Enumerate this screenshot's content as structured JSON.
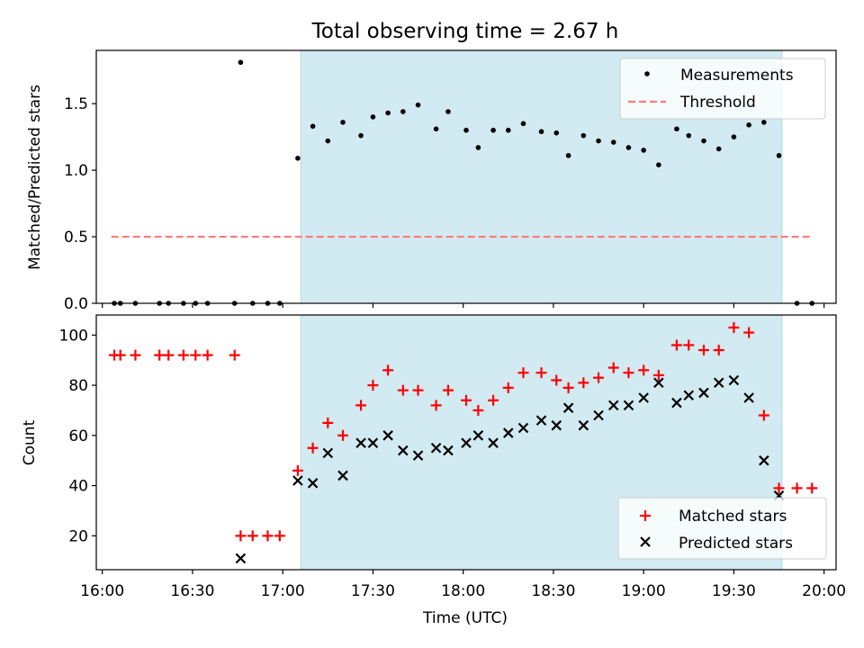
{
  "chart_data": [
    {
      "type": "scatter",
      "title": "Total observing time = 2.67 h",
      "xlabel": "",
      "ylabel": "Matched/Predicted stars",
      "ylim": [
        0,
        1.9
      ],
      "yticks": [
        0.0,
        0.5,
        1.0,
        1.5
      ],
      "ytick_labels": [
        "0.0",
        "0.5",
        "1.0",
        "1.5"
      ],
      "xlim": [
        "15:58",
        "20:04"
      ],
      "xticks": [
        "16:00",
        "16:30",
        "17:00",
        "17:30",
        "18:00",
        "18:30",
        "19:00",
        "19:30",
        "20:00"
      ],
      "grid": false,
      "legend_position": "top-right",
      "shaded_span": [
        "17:06",
        "19:46"
      ],
      "series": [
        {
          "name": "Measurements",
          "marker": "dot",
          "color": "#000000",
          "x": [
            "16:04",
            "16:06",
            "16:11",
            "16:19",
            "16:22",
            "16:27",
            "16:31",
            "16:35",
            "16:44",
            "16:46",
            "16:50",
            "16:55",
            "16:59",
            "17:05",
            "17:10",
            "17:15",
            "17:20",
            "17:26",
            "17:30",
            "17:35",
            "17:40",
            "17:45",
            "17:51",
            "17:55",
            "18:01",
            "18:05",
            "18:10",
            "18:15",
            "18:20",
            "18:26",
            "18:31",
            "18:35",
            "18:40",
            "18:45",
            "18:50",
            "18:55",
            "19:00",
            "19:05",
            "19:11",
            "19:15",
            "19:20",
            "19:25",
            "19:30",
            "19:35",
            "19:40",
            "19:45",
            "19:51",
            "19:56"
          ],
          "y": [
            0,
            0,
            0,
            0,
            0,
            0,
            0,
            0,
            0,
            1.81,
            0,
            0,
            0,
            1.09,
            1.33,
            1.22,
            1.36,
            1.26,
            1.4,
            1.43,
            1.44,
            1.49,
            1.31,
            1.44,
            1.3,
            1.17,
            1.3,
            1.3,
            1.35,
            1.29,
            1.28,
            1.11,
            1.26,
            1.22,
            1.21,
            1.17,
            1.15,
            1.04,
            1.31,
            1.26,
            1.22,
            1.16,
            1.25,
            1.34,
            1.36,
            1.11,
            0,
            0
          ]
        },
        {
          "name": "Threshold",
          "line": "dashed",
          "color": "#ff7b7b",
          "x": [
            "16:03",
            "19:56"
          ],
          "y": [
            0.5,
            0.5
          ]
        }
      ]
    },
    {
      "type": "scatter",
      "title": "",
      "xlabel": "Time (UTC)",
      "ylabel": "Count",
      "ylim": [
        6.5,
        108
      ],
      "yticks": [
        20,
        40,
        60,
        80,
        100
      ],
      "ytick_labels": [
        "20",
        "40",
        "60",
        "80",
        "100"
      ],
      "xlim": [
        "15:58",
        "20:04"
      ],
      "xticks": [
        "16:00",
        "16:30",
        "17:00",
        "17:30",
        "18:00",
        "18:30",
        "19:00",
        "19:30",
        "20:00"
      ],
      "xtick_labels": [
        "16:00",
        "16:30",
        "17:00",
        "17:30",
        "18:00",
        "18:30",
        "19:00",
        "19:30",
        "20:00"
      ],
      "grid": false,
      "legend_position": "bottom-right",
      "shaded_span": [
        "17:06",
        "19:46"
      ],
      "series": [
        {
          "name": "Matched stars",
          "marker": "plus",
          "color": "#ff0000",
          "x": [
            "16:04",
            "16:06",
            "16:11",
            "16:19",
            "16:22",
            "16:27",
            "16:31",
            "16:35",
            "16:44",
            "16:46",
            "16:50",
            "16:55",
            "16:59",
            "17:05",
            "17:10",
            "17:15",
            "17:20",
            "17:26",
            "17:30",
            "17:35",
            "17:40",
            "17:45",
            "17:51",
            "17:55",
            "18:01",
            "18:05",
            "18:10",
            "18:15",
            "18:20",
            "18:26",
            "18:31",
            "18:35",
            "18:40",
            "18:45",
            "18:50",
            "18:55",
            "19:00",
            "19:05",
            "19:11",
            "19:15",
            "19:20",
            "19:25",
            "19:30",
            "19:35",
            "19:40",
            "19:45",
            "19:51",
            "19:56"
          ],
          "y": [
            92,
            92,
            92,
            92,
            92,
            92,
            92,
            92,
            92,
            20,
            20,
            20,
            20,
            46,
            55,
            65,
            60,
            72,
            80,
            86,
            78,
            78,
            72,
            78,
            74,
            70,
            74,
            79,
            85,
            85,
            82,
            79,
            81,
            83,
            87,
            85,
            86,
            84,
            96,
            96,
            94,
            94,
            103,
            101,
            68,
            39,
            39,
            39
          ]
        },
        {
          "name": "Predicted stars",
          "marker": "x",
          "color": "#000000",
          "x": [
            "16:46",
            "17:05",
            "17:10",
            "17:15",
            "17:20",
            "17:26",
            "17:30",
            "17:35",
            "17:40",
            "17:45",
            "17:51",
            "17:55",
            "18:01",
            "18:05",
            "18:10",
            "18:15",
            "18:20",
            "18:26",
            "18:31",
            "18:35",
            "18:40",
            "18:45",
            "18:50",
            "18:55",
            "19:00",
            "19:05",
            "19:11",
            "19:15",
            "19:20",
            "19:25",
            "19:30",
            "19:35",
            "19:40",
            "19:45"
          ],
          "y": [
            11,
            42,
            41,
            53,
            44,
            57,
            57,
            60,
            54,
            52,
            55,
            54,
            57,
            60,
            57,
            61,
            63,
            66,
            64,
            71,
            64,
            68,
            72,
            72,
            75,
            81,
            73,
            76,
            77,
            81,
            82,
            75,
            50,
            36
          ]
        }
      ]
    }
  ],
  "colors": {
    "shade": "#add8e6",
    "threshold": "#ff7b7b",
    "matched": "#ff0000",
    "predicted": "#000000",
    "measurement": "#000000"
  }
}
